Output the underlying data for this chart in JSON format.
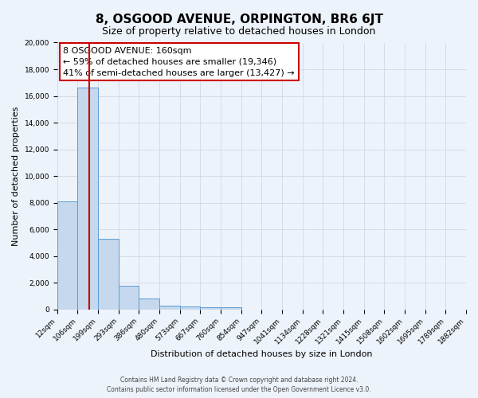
{
  "title": "8, OSGOOD AVENUE, ORPINGTON, BR6 6JT",
  "subtitle": "Size of property relative to detached houses in London",
  "xlabel": "Distribution of detached houses by size in London",
  "ylabel": "Number of detached properties",
  "bar_heights": [
    8100,
    16600,
    5300,
    1750,
    800,
    280,
    200,
    130,
    130,
    0,
    0,
    0,
    0,
    0,
    0,
    0,
    0,
    0,
    0,
    0
  ],
  "bar_color": "#c5d8ed",
  "bar_edge_color": "#5b9bd5",
  "grid_color": "#d0d8e8",
  "bg_color": "#edf3fa",
  "red_line_x": 1.55,
  "ylim": [
    0,
    20000
  ],
  "annotation_text": "8 OSGOOD AVENUE: 160sqm\n← 59% of detached houses are smaller (19,346)\n41% of semi-detached houses are larger (13,427) →",
  "annotation_box_color": "#ffffff",
  "annotation_box_edge_color": "#cc0000",
  "red_line_color": "#cc0000",
  "footer_line1": "Contains HM Land Registry data © Crown copyright and database right 2024.",
  "footer_line2": "Contains public sector information licensed under the Open Government Licence v3.0.",
  "tick_labels": [
    "12sqm",
    "106sqm",
    "199sqm",
    "293sqm",
    "386sqm",
    "480sqm",
    "573sqm",
    "667sqm",
    "760sqm",
    "854sqm",
    "947sqm",
    "1041sqm",
    "1134sqm",
    "1228sqm",
    "1321sqm",
    "1415sqm",
    "1508sqm",
    "1602sqm",
    "1695sqm",
    "1789sqm",
    "1882sqm"
  ],
  "title_fontsize": 11,
  "subtitle_fontsize": 9,
  "tick_fontsize": 6.5,
  "ylabel_fontsize": 8,
  "xlabel_fontsize": 8,
  "annotation_fontsize": 8
}
